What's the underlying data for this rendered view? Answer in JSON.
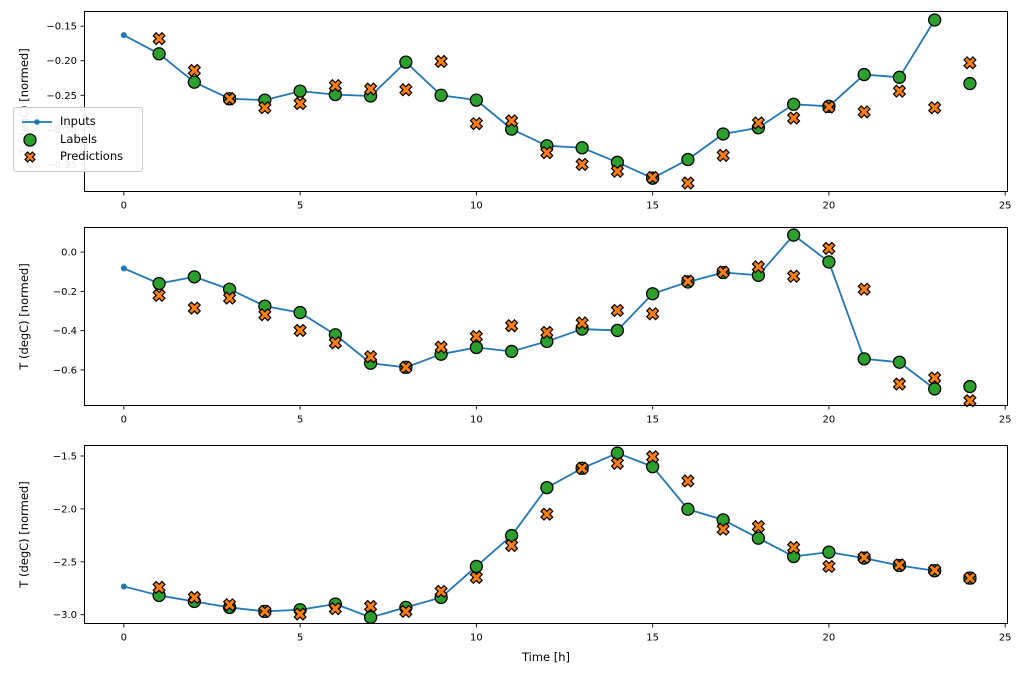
{
  "figure": {
    "background": "#ffffff",
    "xlabel": "Time [h]",
    "marker_edge_color": "#000000",
    "legend": {
      "position": "upper left of first subplot",
      "items": [
        {
          "label": "Inputs",
          "marker": "line-with-dot",
          "color": "#1f77b4"
        },
        {
          "label": "Labels",
          "marker": "circle",
          "color": "#2ca02c"
        },
        {
          "label": "Predictions",
          "marker": "x",
          "color": "#ff7f0e"
        }
      ]
    }
  },
  "chart_data": [
    {
      "type": "line",
      "title": "",
      "xlabel": "",
      "ylabel": "T (degC) [normed]",
      "xlim": [
        -1.13,
        25.08
      ],
      "ylim": [
        -0.39,
        -0.128
      ],
      "xticks": [
        0,
        5,
        10,
        15,
        20,
        25
      ],
      "xticklabels": [
        "0",
        "5",
        "10",
        "15",
        "20",
        "25"
      ],
      "yticks": [
        -0.15,
        -0.2,
        -0.25,
        -0.3,
        -0.35
      ],
      "yticklabels": [
        "−0.15",
        "−0.20",
        "−0.25",
        "−0.30",
        "−0.35"
      ],
      "grid": false,
      "legend": true,
      "series": [
        {
          "name": "Inputs",
          "style": "line-with-dots",
          "color": "#1f77b4",
          "x": [
            0,
            1,
            2,
            3,
            4,
            5,
            6,
            7,
            8,
            9,
            10,
            11,
            12,
            13,
            14,
            15,
            16,
            17,
            18,
            19,
            20,
            21,
            22,
            23
          ],
          "values": [
            -0.163,
            -0.19,
            -0.231,
            -0.255,
            -0.257,
            -0.244,
            -0.249,
            -0.251,
            -0.202,
            -0.25,
            -0.257,
            -0.299,
            -0.323,
            -0.326,
            -0.347,
            -0.37,
            -0.343,
            -0.306,
            -0.297,
            -0.263,
            -0.266,
            -0.22,
            -0.224,
            -0.141
          ]
        },
        {
          "name": "Labels",
          "style": "scatter-circle",
          "color": "#2ca02c",
          "x": [
            1,
            2,
            3,
            4,
            5,
            6,
            7,
            8,
            9,
            10,
            11,
            12,
            13,
            14,
            15,
            16,
            17,
            18,
            19,
            20,
            21,
            22,
            23,
            24
          ],
          "values": [
            -0.19,
            -0.231,
            -0.255,
            -0.257,
            -0.244,
            -0.249,
            -0.251,
            -0.202,
            -0.25,
            -0.257,
            -0.299,
            -0.323,
            -0.326,
            -0.347,
            -0.37,
            -0.343,
            -0.306,
            -0.297,
            -0.263,
            -0.266,
            -0.22,
            -0.224,
            -0.141,
            -0.233
          ]
        },
        {
          "name": "Predictions",
          "style": "scatter-x",
          "color": "#ff7f0e",
          "x": [
            1,
            2,
            3,
            4,
            5,
            6,
            7,
            8,
            9,
            10,
            11,
            12,
            13,
            14,
            15,
            16,
            17,
            18,
            19,
            20,
            21,
            22,
            23,
            24
          ],
          "values": [
            -0.168,
            -0.214,
            -0.255,
            -0.268,
            -0.262,
            -0.236,
            -0.241,
            -0.242,
            -0.201,
            -0.291,
            -0.287,
            -0.333,
            -0.35,
            -0.36,
            -0.369,
            -0.377,
            -0.337,
            -0.29,
            -0.283,
            -0.267,
            -0.274,
            -0.244,
            -0.268,
            -0.203
          ]
        }
      ]
    },
    {
      "type": "line",
      "title": "",
      "xlabel": "",
      "ylabel": "T (degC) [normed]",
      "xlim": [
        -1.13,
        25.08
      ],
      "ylim": [
        -0.784,
        0.128
      ],
      "xticks": [
        0,
        5,
        10,
        15,
        20,
        25
      ],
      "xticklabels": [
        "0",
        "5",
        "10",
        "15",
        "20",
        "25"
      ],
      "yticks": [
        0.0,
        -0.2,
        -0.4,
        -0.6
      ],
      "yticklabels": [
        "0.0",
        "−0.2",
        "−0.4",
        "−0.6"
      ],
      "grid": false,
      "legend": false,
      "series": [
        {
          "name": "Inputs",
          "style": "line-with-dots",
          "color": "#1f77b4",
          "x": [
            0,
            1,
            2,
            3,
            4,
            5,
            6,
            7,
            8,
            9,
            10,
            11,
            12,
            13,
            14,
            15,
            16,
            17,
            18,
            19,
            20,
            21,
            22,
            23
          ],
          "values": [
            -0.083,
            -0.16,
            -0.126,
            -0.189,
            -0.275,
            -0.308,
            -0.421,
            -0.566,
            -0.587,
            -0.52,
            -0.486,
            -0.506,
            -0.455,
            -0.392,
            -0.399,
            -0.212,
            -0.152,
            -0.104,
            -0.118,
            0.087,
            -0.05,
            -0.544,
            -0.561,
            -0.697
          ]
        },
        {
          "name": "Labels",
          "style": "scatter-circle",
          "color": "#2ca02c",
          "x": [
            1,
            2,
            3,
            4,
            5,
            6,
            7,
            8,
            9,
            10,
            11,
            12,
            13,
            14,
            15,
            16,
            17,
            18,
            19,
            20,
            21,
            22,
            23,
            24
          ],
          "values": [
            -0.16,
            -0.126,
            -0.189,
            -0.275,
            -0.308,
            -0.421,
            -0.566,
            -0.587,
            -0.52,
            -0.486,
            -0.506,
            -0.455,
            -0.392,
            -0.399,
            -0.212,
            -0.152,
            -0.104,
            -0.118,
            0.087,
            -0.05,
            -0.544,
            -0.561,
            -0.697,
            -0.685
          ]
        },
        {
          "name": "Predictions",
          "style": "scatter-x",
          "color": "#ff7f0e",
          "x": [
            1,
            2,
            3,
            4,
            5,
            6,
            7,
            8,
            9,
            10,
            11,
            12,
            13,
            14,
            15,
            16,
            17,
            18,
            19,
            20,
            21,
            22,
            23,
            24
          ],
          "values": [
            -0.22,
            -0.285,
            -0.234,
            -0.319,
            -0.399,
            -0.462,
            -0.533,
            -0.587,
            -0.484,
            -0.43,
            -0.375,
            -0.409,
            -0.361,
            -0.297,
            -0.314,
            -0.148,
            -0.102,
            -0.075,
            -0.123,
            0.019,
            -0.189,
            -0.672,
            -0.641,
            -0.757
          ]
        }
      ]
    },
    {
      "type": "line",
      "title": "",
      "xlabel": "Time [h]",
      "ylabel": "T (degC) [normed]",
      "xlim": [
        -1.13,
        25.08
      ],
      "ylim": [
        -3.088,
        -1.396
      ],
      "xticks": [
        0,
        5,
        10,
        15,
        20,
        25
      ],
      "xticklabels": [
        "0",
        "5",
        "10",
        "15",
        "20",
        "25"
      ],
      "yticks": [
        -1.5,
        -2.0,
        -2.5,
        -3.0
      ],
      "yticklabels": [
        "−1.5",
        "−2.0",
        "−2.5",
        "−3.0"
      ],
      "grid": false,
      "legend": false,
      "series": [
        {
          "name": "Inputs",
          "style": "line-with-dots",
          "color": "#1f77b4",
          "x": [
            0,
            1,
            2,
            3,
            4,
            5,
            6,
            7,
            8,
            9,
            10,
            11,
            12,
            13,
            14,
            15,
            16,
            17,
            18,
            19,
            20,
            21,
            22,
            23
          ],
          "values": [
            -2.733,
            -2.818,
            -2.875,
            -2.931,
            -2.969,
            -2.953,
            -2.899,
            -3.025,
            -2.931,
            -2.837,
            -2.544,
            -2.252,
            -1.799,
            -1.616,
            -1.472,
            -1.601,
            -2.003,
            -2.104,
            -2.277,
            -2.45,
            -2.409,
            -2.465,
            -2.535,
            -2.585
          ]
        },
        {
          "name": "Labels",
          "style": "scatter-circle",
          "color": "#2ca02c",
          "x": [
            1,
            2,
            3,
            4,
            5,
            6,
            7,
            8,
            9,
            10,
            11,
            12,
            13,
            14,
            15,
            16,
            17,
            18,
            19,
            20,
            21,
            22,
            23,
            24
          ],
          "values": [
            -2.818,
            -2.875,
            -2.931,
            -2.969,
            -2.953,
            -2.899,
            -3.025,
            -2.931,
            -2.837,
            -2.544,
            -2.252,
            -1.799,
            -1.616,
            -1.472,
            -1.601,
            -2.003,
            -2.104,
            -2.277,
            -2.45,
            -2.409,
            -2.465,
            -2.535,
            -2.585,
            -2.654
          ]
        },
        {
          "name": "Predictions",
          "style": "scatter-x",
          "color": "#ff7f0e",
          "x": [
            1,
            2,
            3,
            4,
            5,
            6,
            7,
            8,
            9,
            10,
            11,
            12,
            13,
            14,
            15,
            16,
            17,
            18,
            19,
            20,
            21,
            22,
            23,
            24
          ],
          "values": [
            -2.742,
            -2.837,
            -2.906,
            -2.969,
            -2.994,
            -2.943,
            -2.922,
            -2.969,
            -2.78,
            -2.648,
            -2.346,
            -2.05,
            -1.616,
            -1.569,
            -1.507,
            -1.736,
            -2.192,
            -2.167,
            -2.365,
            -2.544,
            -2.46,
            -2.53,
            -2.58,
            -2.654
          ]
        }
      ]
    }
  ]
}
